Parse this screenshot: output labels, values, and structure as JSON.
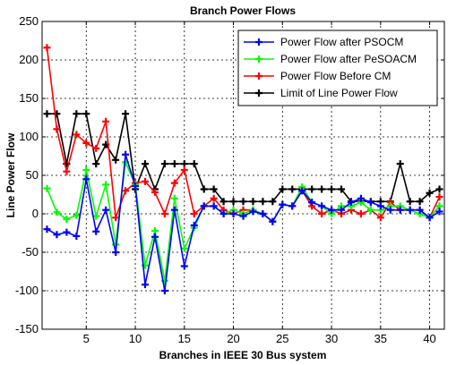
{
  "chart_data": {
    "type": "line",
    "title": "Branch Power Flows",
    "xlabel": "Branches in IEEE 30 Bus system",
    "ylabel": "Line Power Flow",
    "xlim": [
      0.5,
      41.5
    ],
    "ylim": [
      -150,
      250
    ],
    "xticks": [
      5,
      10,
      15,
      20,
      25,
      30,
      35,
      40
    ],
    "yticks": [
      -150,
      -100,
      -50,
      0,
      50,
      100,
      150,
      200,
      250
    ],
    "grid": true,
    "legend_position": "top-right",
    "x": [
      1,
      2,
      3,
      4,
      5,
      6,
      7,
      8,
      9,
      10,
      11,
      12,
      13,
      14,
      15,
      16,
      17,
      18,
      19,
      20,
      21,
      22,
      23,
      24,
      25,
      26,
      27,
      28,
      29,
      30,
      31,
      32,
      33,
      34,
      35,
      36,
      37,
      38,
      39,
      40,
      41
    ],
    "series": [
      {
        "name": "Power Flow after PSOCM",
        "color": "#0000ff",
        "values": [
          -20,
          -27,
          -24,
          -29,
          45,
          -23,
          5,
          -50,
          77,
          36,
          -92,
          -30,
          -100,
          5,
          -68,
          -15,
          10,
          10,
          0,
          0,
          -3,
          3,
          0,
          -10,
          12,
          10,
          30,
          15,
          10,
          5,
          5,
          15,
          20,
          15,
          10,
          5,
          5,
          5,
          5,
          -5,
          3
        ]
      },
      {
        "name": "Power Flow after PeSOACM",
        "color": "#00ff00",
        "values": [
          33,
          2,
          -7,
          -2,
          57,
          -3,
          38,
          -40,
          67,
          38,
          -67,
          -22,
          -87,
          20,
          -45,
          -18,
          10,
          10,
          0,
          5,
          0,
          5,
          0,
          -10,
          12,
          10,
          35,
          15,
          10,
          0,
          10,
          10,
          15,
          5,
          5,
          10,
          10,
          5,
          0,
          -5,
          10
        ]
      },
      {
        "name": "Power Flow Before CM",
        "color": "#ff0000",
        "values": [
          216,
          110,
          55,
          103,
          92,
          85,
          120,
          -5,
          30,
          40,
          42,
          28,
          0,
          40,
          57,
          0,
          10,
          20,
          5,
          0,
          5,
          5,
          0,
          -10,
          12,
          10,
          30,
          10,
          0,
          5,
          0,
          5,
          0,
          5,
          -5,
          15,
          5,
          5,
          5,
          -5,
          22
        ]
      },
      {
        "name": "Limit of Line Power Flow",
        "color": "#000000",
        "values": [
          130,
          130,
          65,
          130,
          130,
          65,
          90,
          70,
          130,
          32,
          65,
          32,
          65,
          65,
          65,
          65,
          32,
          32,
          16,
          16,
          16,
          16,
          16,
          16,
          32,
          32,
          32,
          32,
          32,
          32,
          32,
          16,
          16,
          16,
          16,
          16,
          65,
          16,
          16,
          27,
          32
        ]
      }
    ]
  }
}
